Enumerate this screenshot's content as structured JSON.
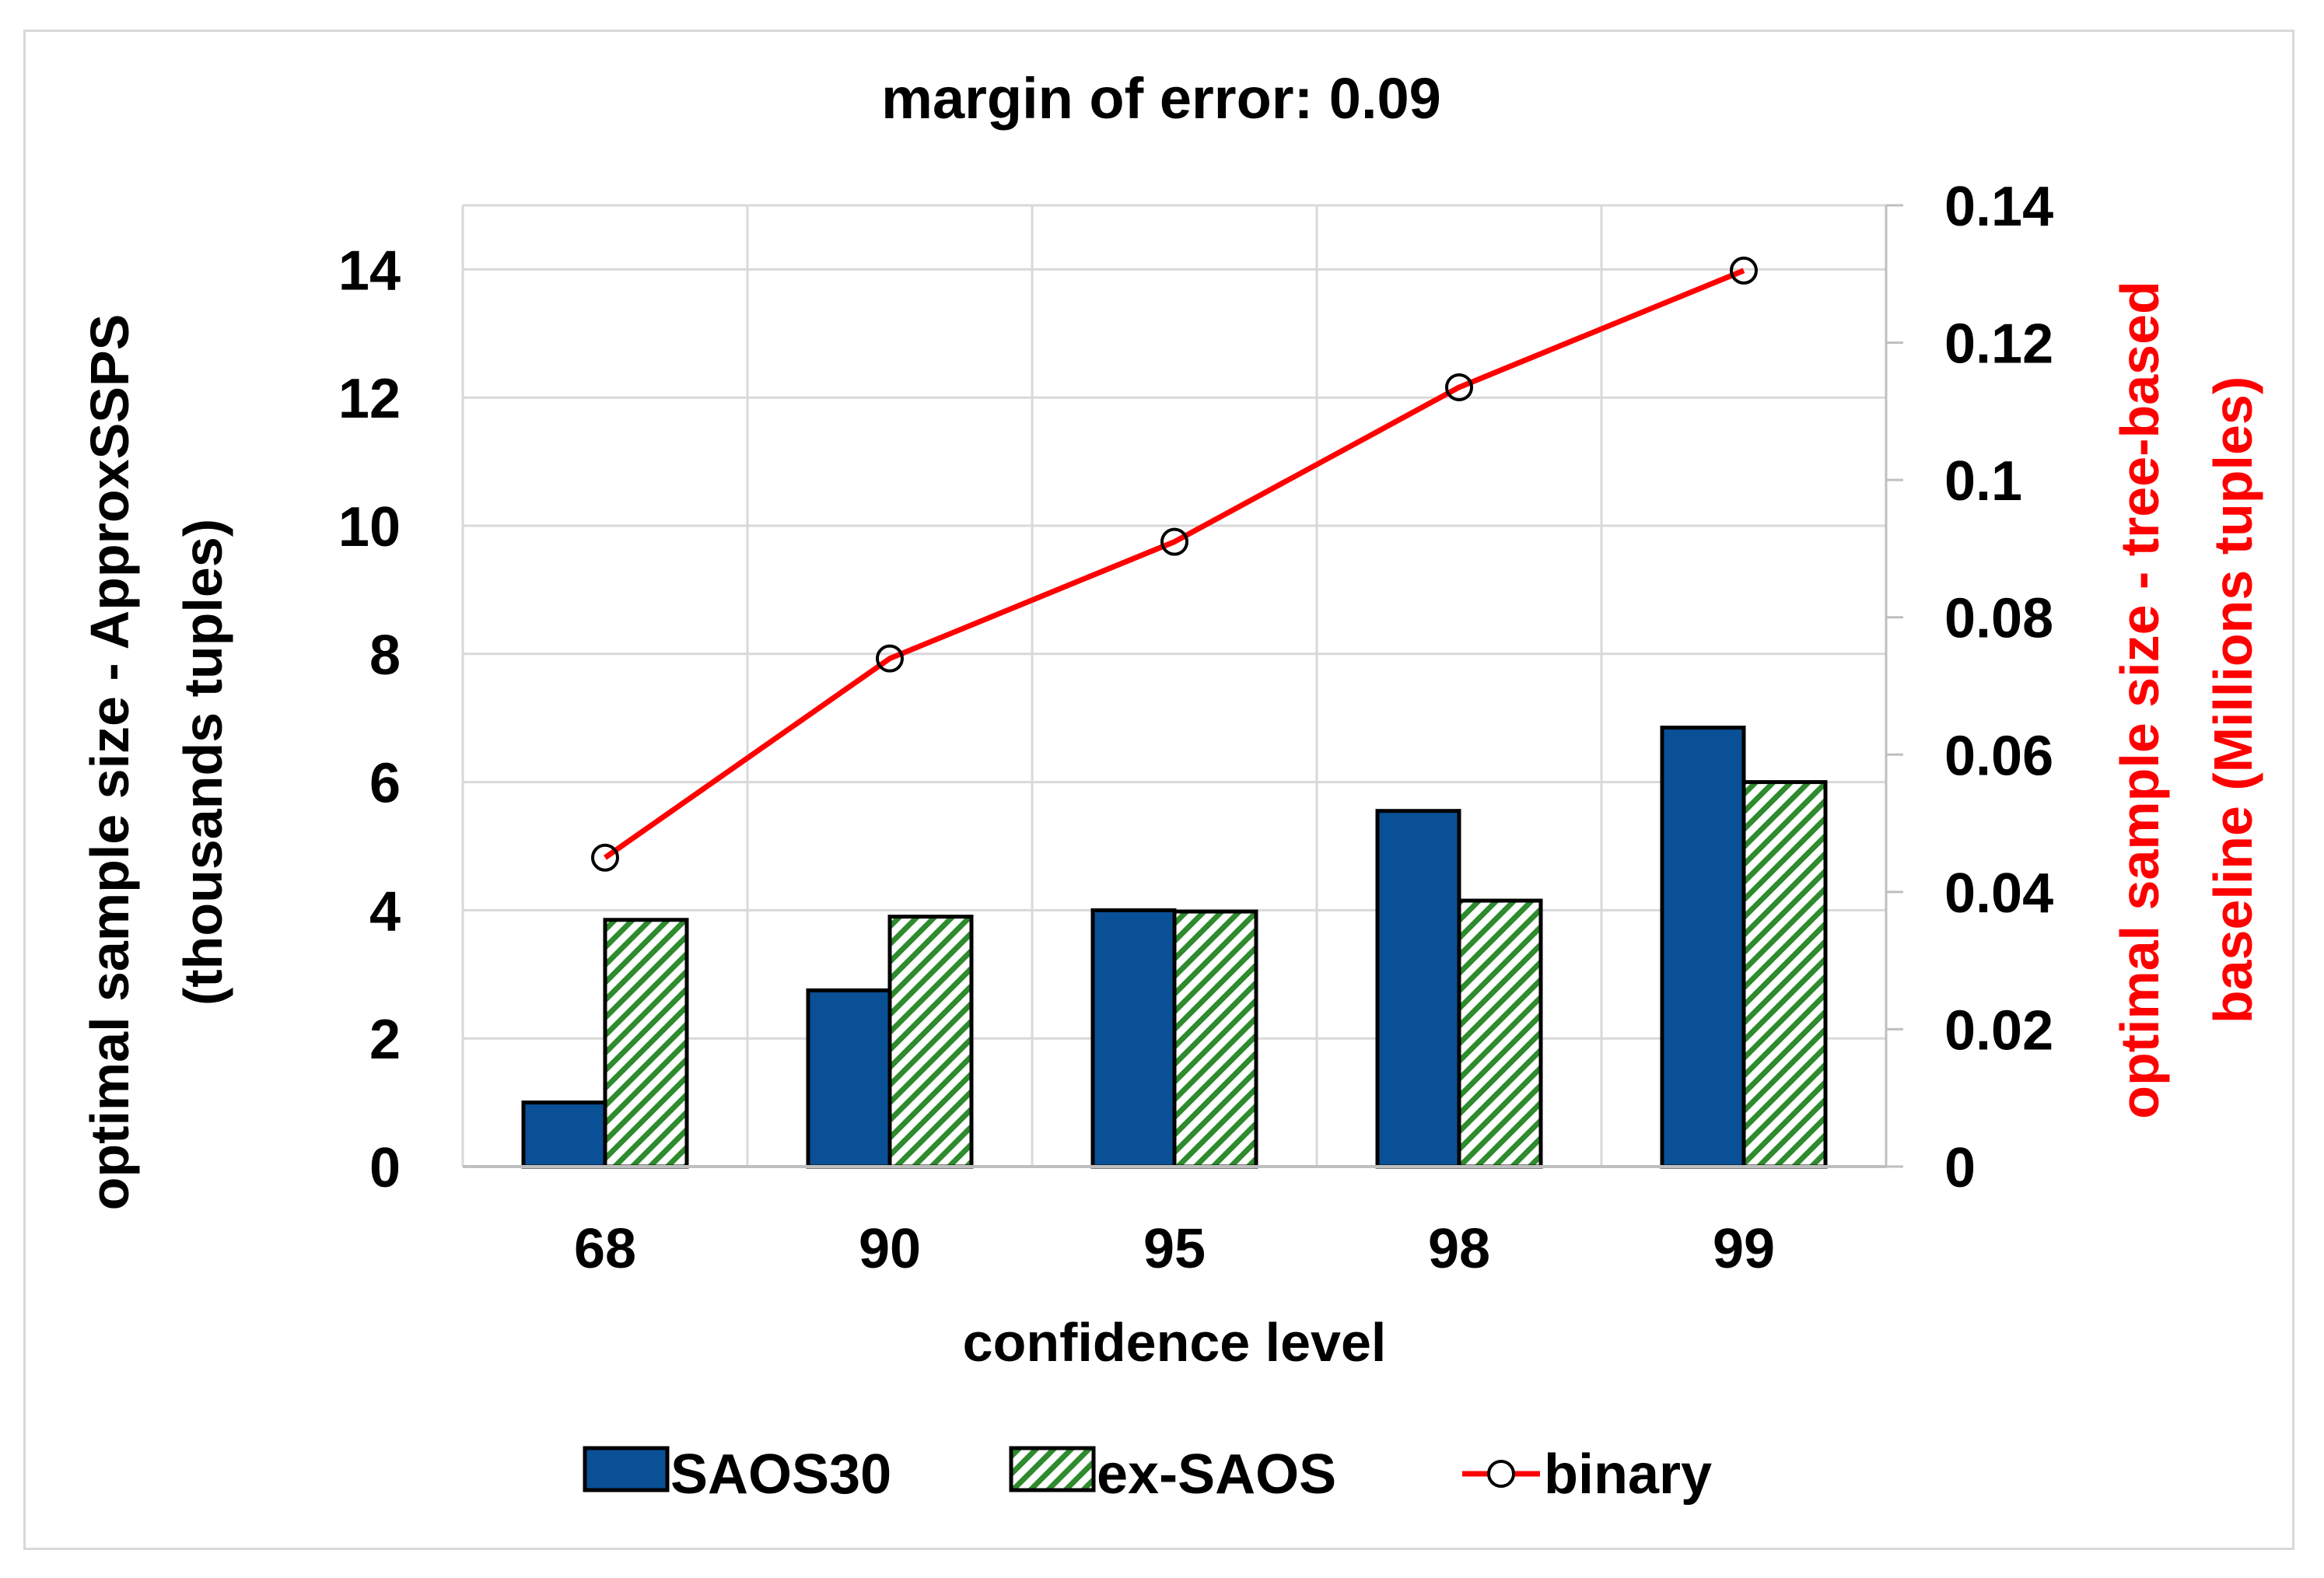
{
  "chart_data": {
    "type": "bar",
    "title": "margin of error: 0.09",
    "xlabel": "confidence level",
    "ylabel_left_line1": "optimal sample size - ApproxSSPS",
    "ylabel_left_line2": "(thousands tuples)",
    "ylabel_right_line1": "optimal sample size - tree-based",
    "ylabel_right_line2": "baseline (Millions tuples)",
    "categories": [
      "68",
      "90",
      "95",
      "98",
      "99"
    ],
    "ylim_left": [
      0,
      15
    ],
    "yticks_left": [
      "0",
      "2",
      "4",
      "6",
      "8",
      "10",
      "12",
      "14"
    ],
    "ylim_right": [
      0,
      0.14
    ],
    "yticks_right": [
      "0",
      "0.02",
      "0.04",
      "0.06",
      "0.08",
      "0.1",
      "0.12",
      "0.14"
    ],
    "grid": true,
    "legend_position": "bottom",
    "series": [
      {
        "name": "SAOS30",
        "type": "bar",
        "axis": "left",
        "values": [
          1.0,
          2.75,
          4.0,
          5.55,
          6.85
        ],
        "color": "#0a5096"
      },
      {
        "name": "ex-SAOS",
        "type": "bar",
        "axis": "left",
        "values": [
          3.85,
          3.9,
          3.98,
          4.15,
          6.0
        ],
        "color": "#2e8b2e",
        "pattern": "diagonal-hatch"
      },
      {
        "name": "binary",
        "type": "line",
        "axis": "right",
        "values": [
          0.045,
          0.074,
          0.091,
          0.1135,
          0.1305
        ],
        "color": "#ff0000",
        "marker": "open-circle"
      }
    ]
  }
}
